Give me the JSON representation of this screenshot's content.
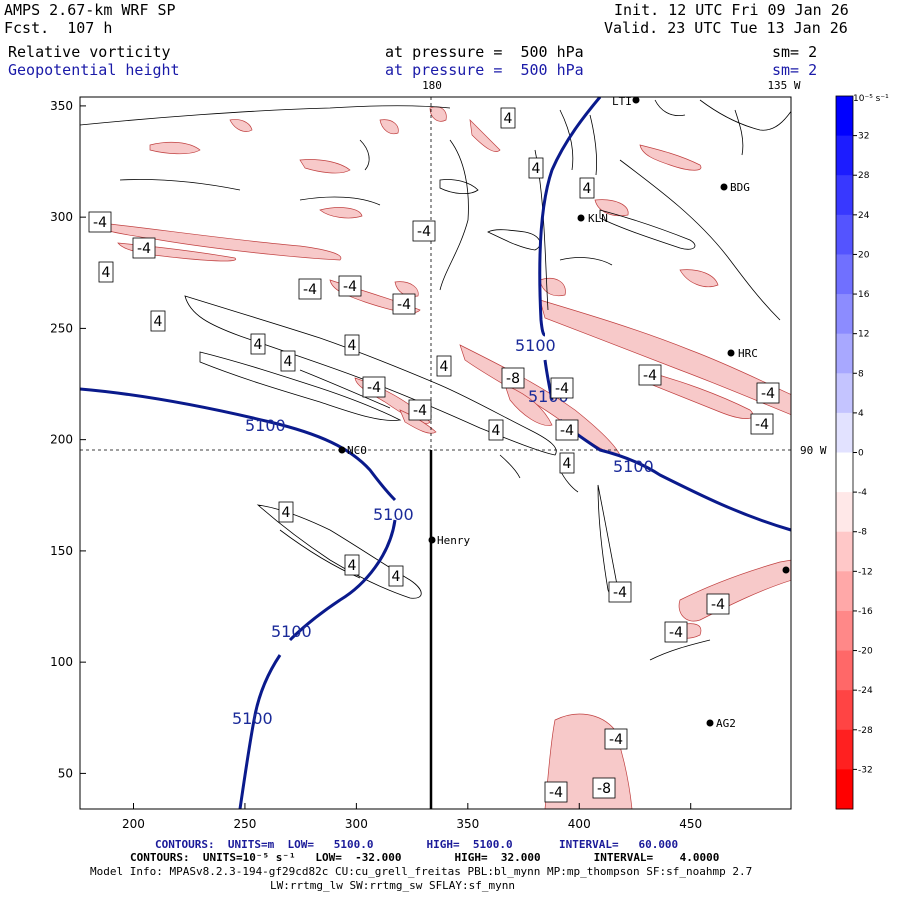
{
  "header": {
    "model": "AMPS 2.67-km WRF SP",
    "forecast": "Fcst.  107 h",
    "init": "Init. 12 UTC Fri 09 Jan 26",
    "valid": "Valid. 23 UTC Tue 13 Jan 26",
    "field1_name": "Relative vorticity",
    "field1_level": "at pressure =  500 hPa",
    "field1_sm": "sm= 2",
    "field2_name": "Geopotential height",
    "field2_level": "at pressure =  500 hPa",
    "field2_sm": "sm= 2"
  },
  "map": {
    "lon_labels": [
      "180",
      "135 W",
      "90 W"
    ],
    "x_ticks": [
      "200",
      "250",
      "300",
      "350",
      "400",
      "450"
    ],
    "y_ticks": [
      "50",
      "100",
      "150",
      "200",
      "250",
      "300",
      "350"
    ],
    "stations": [
      "NCO",
      "Henry",
      "KLN",
      "BDG",
      "HRC",
      "AG2",
      "LTI"
    ],
    "height_contour_label": "5100",
    "vort_labels_pos": "4",
    "vort_labels_neg": "-4",
    "vort_labels_neg8": "-8"
  },
  "colorbar": {
    "unit": "10⁻⁵ s⁻¹",
    "labels": [
      "32",
      "28",
      "24",
      "20",
      "16",
      "12",
      "8",
      "4",
      "0",
      "-4",
      "-8",
      "-12",
      "-16",
      "-20",
      "-24",
      "-28",
      "-32"
    ],
    "colors": [
      "#0000ff",
      "#1c1cff",
      "#3838ff",
      "#5454ff",
      "#7070ff",
      "#8c8cff",
      "#a8a8ff",
      "#c4c4ff",
      "#e2e2ff",
      "#ffffff",
      "#ffe8e8",
      "#ffc8c8",
      "#ffa8a8",
      "#ff8888",
      "#ff6868",
      "#ff4444",
      "#ff2020",
      "#ff0000"
    ]
  },
  "footer": {
    "line1": "CONTOURS:  UNITS=m  LOW=   5100.0        HIGH=  5100.0       INTERVAL=   60.000",
    "line2": "CONTOURS:  UNITS=10⁻⁵ s⁻¹   LOW=  -32.000        HIGH=  32.000        INTERVAL=    4.0000",
    "line3": "Model Info: MPASv8.2.3-194-gf29cd82c CU:cu_grell_freitas PBL:bl_mynn MP:mp_thompson SF:sf_noahmp 2.7",
    "line4": "LW:rrtmg_lw SW:rrtmg_sw SFLAY:sf_mynn"
  },
  "colors": {
    "height_contour": "#0a1a8c",
    "neg_fill": "#f7c9c9",
    "neg_line": "#c04040"
  }
}
